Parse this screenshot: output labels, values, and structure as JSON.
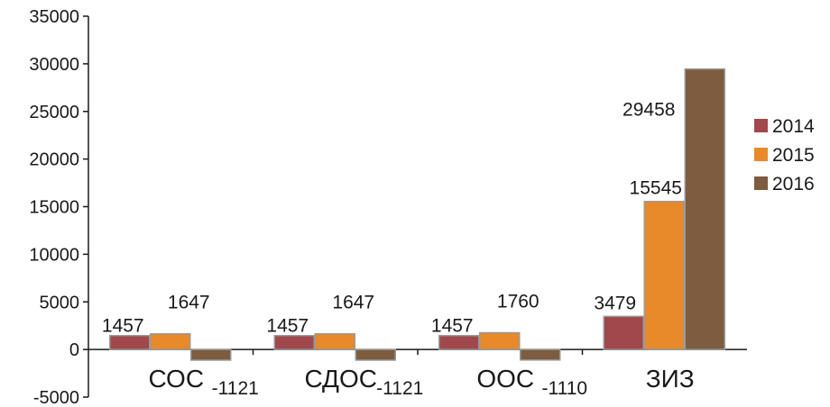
{
  "chart_data": {
    "type": "bar",
    "categories": [
      "СОС",
      "СДОС",
      "ООС",
      "ЗИЗ"
    ],
    "series": [
      {
        "name": "2014",
        "color": "#a0484c",
        "values": [
          1457,
          1457,
          1457,
          3479
        ]
      },
      {
        "name": "2015",
        "color": "#e8892a",
        "values": [
          1647,
          1647,
          1760,
          15545
        ]
      },
      {
        "name": "2016",
        "color": "#7d5c3f",
        "values": [
          -1121,
          -1121,
          -1110,
          29458
        ]
      }
    ],
    "yticks": [
      -5000,
      0,
      5000,
      10000,
      15000,
      20000,
      25000,
      30000,
      35000
    ],
    "ylim": [
      -5000,
      35000
    ],
    "legend_position": "right",
    "grid": false
  }
}
